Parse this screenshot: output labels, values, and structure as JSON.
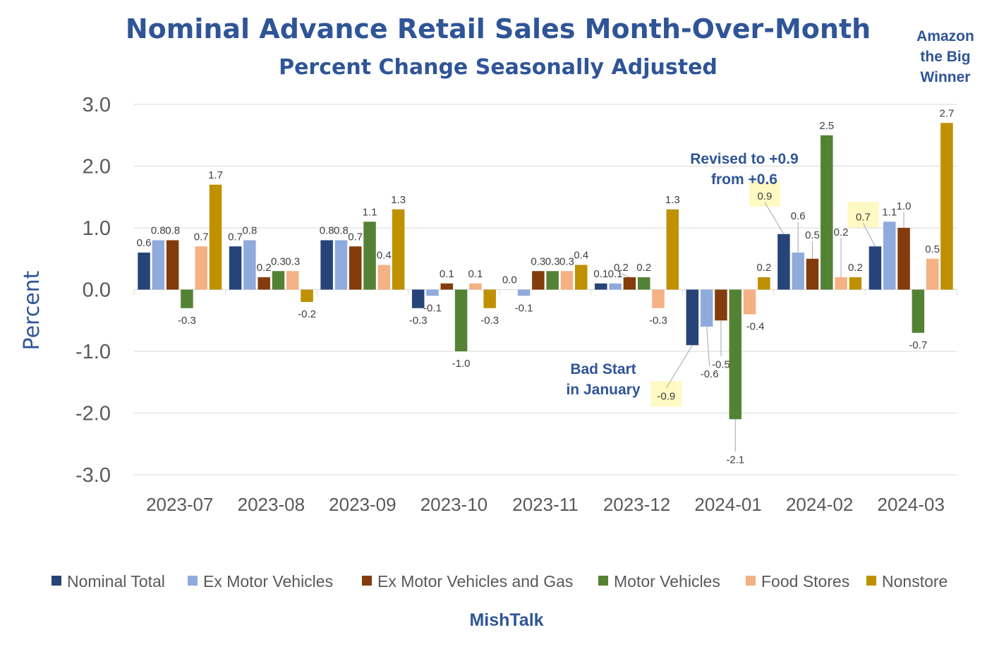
{
  "chart_data": {
    "type": "bar",
    "title": "Nominal Advance Retail Sales Month-Over-Month",
    "subtitle": "Percent Change Seasonally Adjusted",
    "ylabel": "Percent",
    "xlabel": "",
    "ylim": [
      -3.0,
      3.0
    ],
    "yticks": [
      "3.0",
      "2.0",
      "1.0",
      "0.0",
      "-1.0",
      "-2.0",
      "-3.0"
    ],
    "grid": true,
    "legend_position": "bottom",
    "categories": [
      "2023-07",
      "2023-08",
      "2023-09",
      "2023-10",
      "2023-11",
      "2023-12",
      "2024-01",
      "2024-02",
      "2024-03"
    ],
    "series": [
      {
        "name": "Nominal Total",
        "color": "#264478",
        "values": [
          0.6,
          0.7,
          0.8,
          -0.3,
          0.0,
          0.1,
          -0.9,
          0.9,
          0.7
        ],
        "labels": [
          "0.6",
          "0.7",
          "0.8",
          "-0.3",
          "0.0",
          "0.1",
          "-0.9",
          "0.9",
          "0.7"
        ]
      },
      {
        "name": "Ex Motor Vehicles",
        "color": "#8FAADC",
        "values": [
          0.8,
          0.8,
          0.8,
          -0.1,
          -0.1,
          0.1,
          -0.6,
          0.6,
          1.1
        ],
        "labels": [
          "0.8",
          "0.8",
          "0.8",
          "-0.1",
          "-0.1",
          "0.1",
          "-0.6",
          "0.6",
          "1.1"
        ]
      },
      {
        "name": "Ex Motor Vehicles and Gas",
        "color": "#843C0C",
        "values": [
          0.8,
          0.2,
          0.7,
          0.1,
          0.3,
          0.2,
          -0.5,
          0.5,
          1.0
        ],
        "labels": [
          "0.8",
          "0.2",
          "0.7",
          "0.1",
          "0.3",
          "0.2",
          "-0.5",
          "0.5",
          "1.0"
        ]
      },
      {
        "name": "Motor Vehicles",
        "color": "#548235",
        "values": [
          -0.3,
          0.3,
          1.1,
          -1.0,
          0.3,
          0.2,
          -2.1,
          2.5,
          -0.7
        ],
        "labels": [
          "-0.3",
          "0.3",
          "1.1",
          "-1.0",
          "0.3",
          "0.2",
          "-2.1",
          "2.5",
          "-0.7"
        ]
      },
      {
        "name": "Food Stores",
        "color": "#F4B183",
        "values": [
          0.7,
          0.3,
          0.4,
          0.1,
          0.3,
          -0.3,
          -0.4,
          0.2,
          0.5
        ],
        "labels": [
          "0.7",
          "0.3",
          "0.4",
          "0.1",
          "0.3",
          "-0.3",
          "-0.4",
          "0.2",
          "0.5"
        ]
      },
      {
        "name": "Nonstore",
        "color": "#BF9000",
        "values": [
          1.7,
          -0.2,
          1.3,
          -0.3,
          0.4,
          1.3,
          0.2,
          0.2,
          2.7
        ],
        "labels": [
          "1.7",
          "-0.2",
          "1.3",
          "-0.3",
          "0.4",
          "1.3",
          "0.2",
          "0.2",
          "2.7"
        ]
      }
    ],
    "annotations": [
      {
        "text": [
          "Amazon",
          "the Big",
          "Winner"
        ]
      },
      {
        "text": [
          "Revised to +0.9",
          "from +0.6"
        ]
      },
      {
        "text": [
          "Bad Start",
          "in January"
        ]
      }
    ],
    "credit": "MishTalk"
  }
}
